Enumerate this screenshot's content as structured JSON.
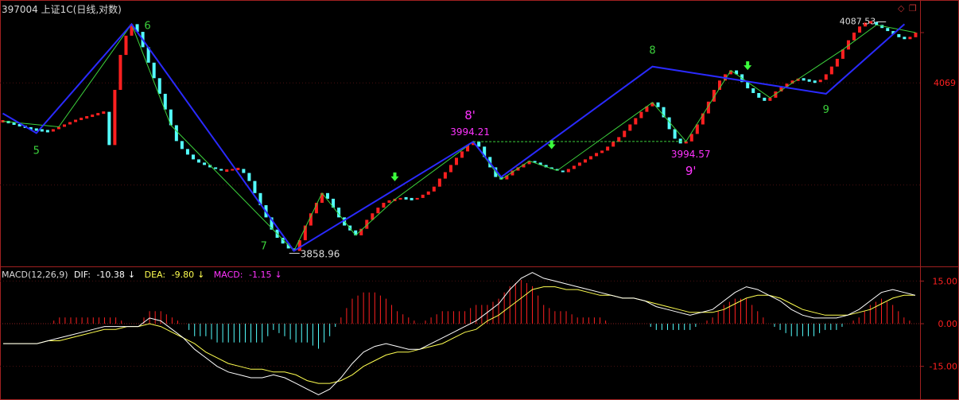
{
  "header": {
    "title": "397004 上证1C(日线,对数)"
  },
  "macd_legend": {
    "name": "MACD(12,26,9)",
    "dif_label": "DIF:",
    "dif_value": "-10.38",
    "dea_label": "DEA:",
    "dea_value": "-9.80",
    "macd_label": "MACD:",
    "macd_value": "-1.15",
    "arrow": "↓"
  },
  "colors": {
    "background": "#000000",
    "up": "#ff2020",
    "down": "#54ffff",
    "wave_line": "#2a2aff",
    "thin_line": "#3cd23c",
    "label_green": "#3cd23c",
    "label_magenta": "#ff33ff",
    "dif": "#ffffff",
    "dea": "#ffff50",
    "axis": "#a02020"
  },
  "chart_data": [
    {
      "type": "bar",
      "subtype": "price-blocks",
      "price_scale": "log",
      "y_tick_labels": [
        "4069"
      ],
      "annotations": [
        {
          "text": "5",
          "role": "wave-label"
        },
        {
          "text": "6",
          "role": "wave-label"
        },
        {
          "text": "7",
          "role": "wave-label"
        },
        {
          "text": "8",
          "role": "wave-label"
        },
        {
          "text": "9",
          "role": "wave-label"
        },
        {
          "text": "8'",
          "role": "wave-label"
        },
        {
          "text": "9'",
          "role": "wave-label"
        },
        {
          "text": "3858.96",
          "role": "price-low"
        },
        {
          "text": "3994.21",
          "role": "price-high"
        },
        {
          "text": "3994.57",
          "role": "price-level"
        },
        {
          "text": "4087.53",
          "role": "price-high"
        }
      ],
      "wave_path_prices": [
        4030,
        4005,
        4145,
        3858.96,
        3994.21,
        3950,
        4090,
        4055,
        4145
      ],
      "closes": [
        4020,
        4018,
        4016,
        4014,
        4012,
        4010,
        4009,
        4008,
        4007,
        4010,
        4013,
        4016,
        4019,
        4022,
        4024,
        4026,
        4028,
        4030,
        4032,
        3990,
        4060,
        4105,
        4130,
        4145,
        4135,
        4115,
        4095,
        4075,
        4055,
        4035,
        4015,
        3995,
        3985,
        3978,
        3972,
        3968,
        3965,
        3962,
        3960,
        3958,
        3958,
        3960,
        3960,
        3955,
        3945,
        3930,
        3915,
        3900,
        3885,
        3875,
        3868,
        3862,
        3858.96,
        3872,
        3890,
        3905,
        3918,
        3930,
        3923,
        3912,
        3900,
        3890,
        3884,
        3878,
        3886,
        3897,
        3905,
        3912,
        3918,
        3921,
        3922,
        3924,
        3923,
        3922,
        3924,
        3928,
        3932,
        3938,
        3948,
        3956,
        3965,
        3974,
        3982,
        3990,
        3994.21,
        3988,
        3975,
        3962,
        3950,
        3947,
        3952,
        3958,
        3962,
        3966,
        3970,
        3968,
        3965,
        3962,
        3960,
        3958,
        3956,
        3960,
        3964,
        3968,
        3972,
        3976,
        3980,
        3983,
        3988,
        3994,
        4000,
        4008,
        4016,
        4024,
        4032,
        4039,
        4044,
        4038,
        4025,
        4010,
        3998,
        3992,
        3994.57,
        4004,
        4016,
        4030,
        4045,
        4060,
        4072,
        4080,
        4085,
        4080,
        4070,
        4062,
        4056,
        4050,
        4046,
        4050,
        4058,
        4064,
        4068,
        4072,
        4074,
        4073,
        4071,
        4070,
        4073,
        4080,
        4090,
        4100,
        4112,
        4124,
        4134,
        4142,
        4147,
        4148,
        4144,
        4140,
        4136,
        4132,
        4128,
        4126,
        4128,
        4134
      ]
    },
    {
      "type": "line",
      "subtype": "macd",
      "title": "MACD(12,26,9)",
      "y_tick_labels": [
        "15.00",
        "0.00",
        "-15.00"
      ],
      "ylim": [
        -26,
        14
      ],
      "series": [
        {
          "name": "DIF",
          "values": [
            -7,
            -7,
            -7,
            -7,
            -6,
            -5,
            -4,
            -3,
            -2,
            -1,
            -1,
            -1,
            -1,
            2,
            1,
            -2,
            -5,
            -9,
            -12,
            -15,
            -17,
            -18,
            -19,
            -19,
            -18,
            -19,
            -21,
            -23,
            -25,
            -23,
            -19,
            -14,
            -10,
            -8,
            -7,
            -8,
            -9,
            -9,
            -7,
            -5,
            -3,
            -1,
            1,
            4,
            7,
            12,
            16,
            18,
            16,
            15,
            14,
            13,
            12,
            11,
            10,
            9,
            9,
            8,
            6,
            5,
            4,
            3,
            4,
            5,
            8,
            11,
            13,
            12,
            10,
            8,
            5,
            3,
            2,
            2,
            2,
            3,
            5,
            8,
            11,
            12,
            11,
            10
          ]
        },
        {
          "name": "DEA",
          "values": [
            -7,
            -7,
            -7,
            -7,
            -6,
            -6,
            -5,
            -4,
            -3,
            -2,
            -2,
            -1,
            -1,
            0,
            -1,
            -3,
            -5,
            -7,
            -10,
            -12,
            -14,
            -15,
            -16,
            -16,
            -17,
            -17,
            -18,
            -20,
            -21,
            -21,
            -20,
            -18,
            -15,
            -13,
            -11,
            -10,
            -10,
            -9,
            -8,
            -7,
            -5,
            -3,
            -2,
            1,
            3,
            6,
            9,
            12,
            13,
            13,
            12,
            12,
            11,
            10,
            10,
            9,
            9,
            8,
            7,
            6,
            5,
            4,
            4,
            4,
            5,
            7,
            9,
            10,
            10,
            9,
            7,
            5,
            4,
            3,
            3,
            3,
            4,
            5,
            7,
            9,
            10,
            10
          ]
        },
        {
          "name": "MACD",
          "values": [
            0,
            0,
            0,
            0,
            0,
            1,
            1,
            1,
            1,
            1,
            1,
            0,
            0,
            2,
            2,
            1,
            0,
            -2,
            -2,
            -3,
            -3,
            -3,
            -3,
            -3,
            -1,
            -2,
            -3,
            -3,
            -4,
            -2,
            1,
            4,
            5,
            5,
            4,
            2,
            1,
            0,
            1,
            2,
            2,
            2,
            3,
            3,
            4,
            6,
            7,
            6,
            3,
            2,
            2,
            1,
            1,
            1,
            0,
            0,
            0,
            0,
            -1,
            -1,
            -1,
            -1,
            0,
            1,
            3,
            4,
            4,
            2,
            0,
            -1,
            -2,
            -2,
            -2,
            -1,
            -1,
            0,
            1,
            3,
            4,
            3,
            1,
            0
          ]
        }
      ]
    }
  ]
}
